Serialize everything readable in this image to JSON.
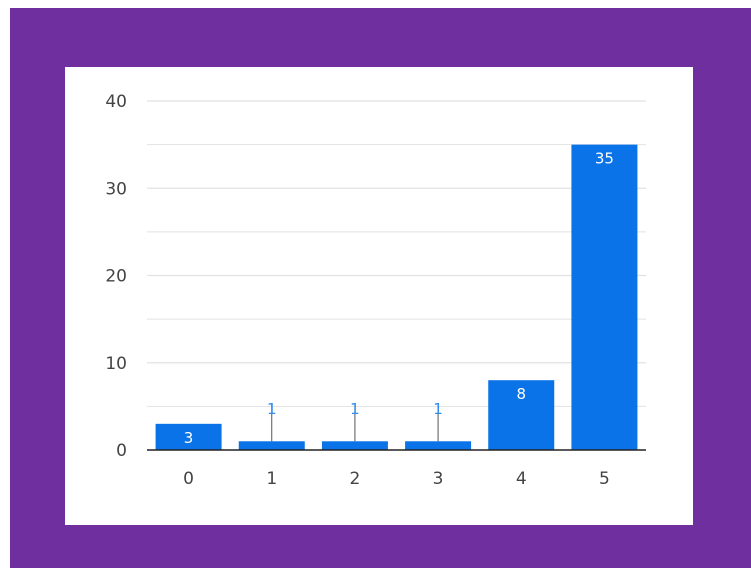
{
  "colors": {
    "frame": "#6f2f9e",
    "bar": "#0a73e8",
    "label_outside": "#2f8cf0",
    "label_inside": "#ffffff",
    "gridline": "#e2e2e2",
    "baseline": "#222222"
  },
  "chart_data": {
    "type": "bar",
    "categories": [
      "0",
      "1",
      "2",
      "3",
      "4",
      "5"
    ],
    "values": [
      3,
      1,
      1,
      1,
      8,
      35
    ],
    "data_labels": [
      "3",
      "1",
      "1",
      "1",
      "8",
      "35"
    ],
    "ylim": [
      0,
      40
    ],
    "y_ticks": [
      "0",
      "10",
      "20",
      "30",
      "40"
    ],
    "y_tick_values": [
      0,
      10,
      20,
      30,
      40
    ],
    "minor_grid_values": [
      5,
      15,
      25,
      35
    ],
    "grid": true,
    "legend": "none"
  }
}
